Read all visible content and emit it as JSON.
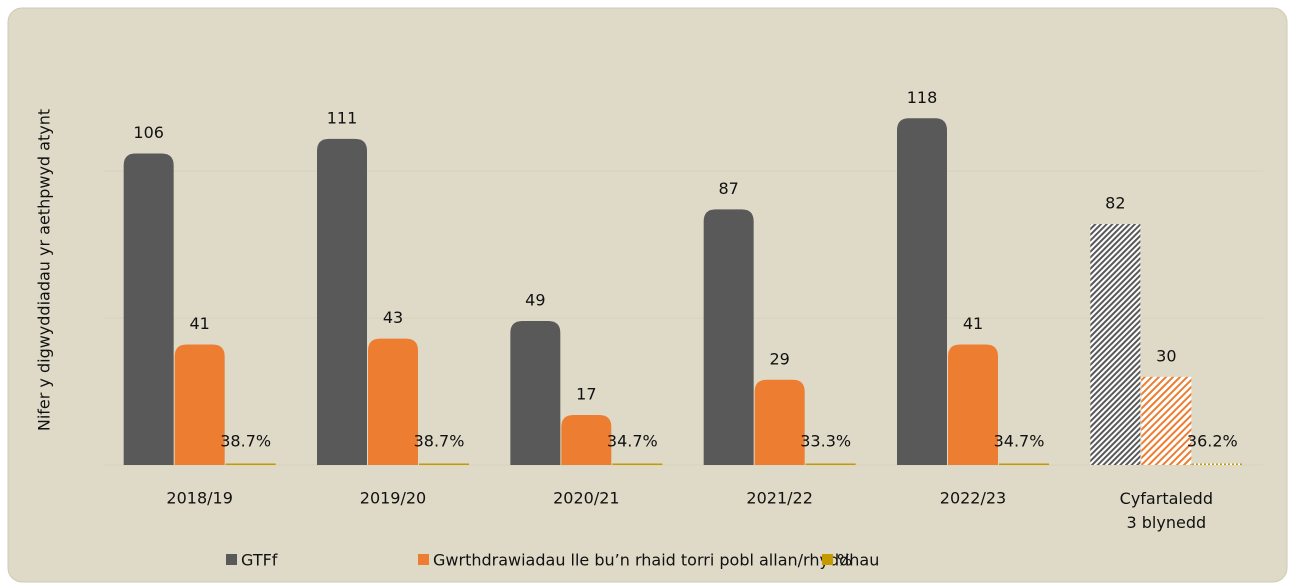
{
  "chart_data": {
    "type": "bar",
    "y_label": "Nifer y digwyddiadau yr aethpwyd atynt",
    "categories": [
      "2018/19",
      "2019/20",
      "2020/21",
      "2021/22",
      "2022/23",
      "Cyfartaledd\n3 blynedd"
    ],
    "series": [
      {
        "name": "GTFf",
        "color": "#595959",
        "values": [
          106,
          111,
          49,
          87,
          118,
          82
        ]
      },
      {
        "name": "Gwrthdrawiadau lle bu’n rhaid torri pobl allan/rhyddhau",
        "color": "#ed7d31",
        "values": [
          41,
          43,
          17,
          29,
          41,
          30
        ]
      },
      {
        "name": "%",
        "color": "#c59a00",
        "values": [
          0.387,
          0.387,
          0.347,
          0.333,
          0.347,
          0.362
        ],
        "value_labels": [
          "38.7%",
          "38.7%",
          "34.7%",
          "33.3%",
          "34.7%",
          "36.2%"
        ]
      }
    ],
    "hatched": [
      false,
      false,
      false,
      false,
      false,
      true
    ],
    "ylim": [
      0,
      130
    ],
    "yticks": [
      0,
      50,
      100
    ],
    "grid": true,
    "legend": "bottom"
  }
}
